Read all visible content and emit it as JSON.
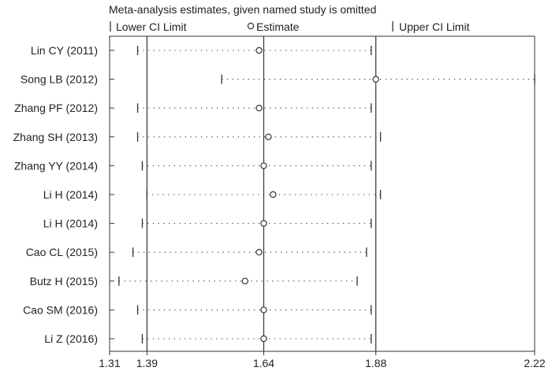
{
  "chart_data": {
    "type": "scatter",
    "title": "Meta-analysis estimates, given named study is omitted",
    "legend": {
      "placement": "top",
      "entries": [
        {
          "symbol": "|",
          "label": "Lower CI Limit"
        },
        {
          "symbol": "o",
          "label": "Estimate"
        },
        {
          "symbol": "|",
          "label": "Upper CI Limit"
        }
      ]
    },
    "xlim": [
      1.31,
      2.22
    ],
    "xticks": [
      1.31,
      1.39,
      1.64,
      1.88,
      2.22
    ],
    "xtick_labels": [
      "1.31",
      "1.39",
      "1.64",
      "1.88",
      "2.22"
    ],
    "reference_lines": [
      1.39,
      1.64,
      1.88
    ],
    "grid": false,
    "studies": [
      {
        "label": "Lin CY (2011)",
        "lower": 1.37,
        "estimate": 1.63,
        "upper": 1.87
      },
      {
        "label": "Song LB (2012)",
        "lower": 1.55,
        "estimate": 1.88,
        "upper": 2.22
      },
      {
        "label": "Zhang PF (2012)",
        "lower": 1.37,
        "estimate": 1.63,
        "upper": 1.87
      },
      {
        "label": "Zhang SH (2013)",
        "lower": 1.37,
        "estimate": 1.65,
        "upper": 1.89
      },
      {
        "label": "Zhang YY (2014)",
        "lower": 1.38,
        "estimate": 1.64,
        "upper": 1.87
      },
      {
        "label": "Li H (2014)",
        "lower": 1.39,
        "estimate": 1.66,
        "upper": 1.89
      },
      {
        "label": "Li H (2014)",
        "lower": 1.38,
        "estimate": 1.64,
        "upper": 1.87
      },
      {
        "label": "Cao CL (2015)",
        "lower": 1.36,
        "estimate": 1.63,
        "upper": 1.86
      },
      {
        "label": "Butz H (2015)",
        "lower": 1.33,
        "estimate": 1.6,
        "upper": 1.84
      },
      {
        "label": "Cao SM (2016)",
        "lower": 1.37,
        "estimate": 1.64,
        "upper": 1.87
      },
      {
        "label": "Li Z (2016)",
        "lower": 1.38,
        "estimate": 1.64,
        "upper": 1.87
      }
    ],
    "colors": {
      "ink": "#333333",
      "background": "#ffffff"
    }
  }
}
